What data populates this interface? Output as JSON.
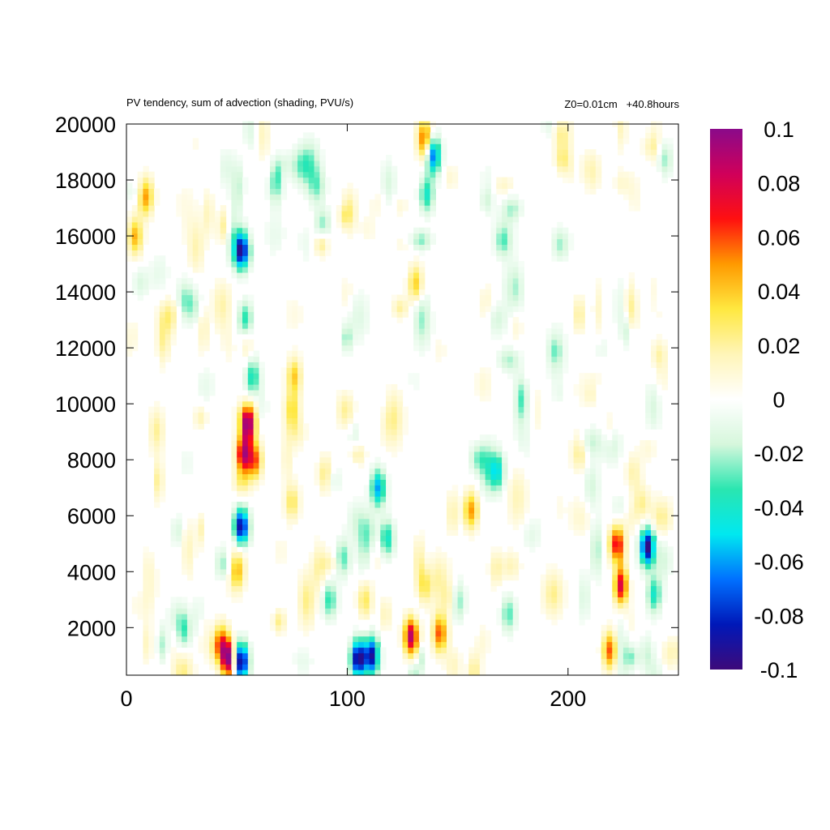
{
  "chart_data": {
    "type": "heatmap",
    "title": "PV tendency, sum of advection (shading, PVU/s)",
    "subtitle_right": "Z0=0.01cm   +40.8hours",
    "xlabel": "",
    "ylabel": "",
    "xlim": [
      0,
      250
    ],
    "ylim": [
      300,
      20000
    ],
    "x_ticks": [
      0,
      100,
      200
    ],
    "x_tick_labels": [
      "0",
      "100",
      "200"
    ],
    "y_ticks": [
      2000,
      4000,
      6000,
      8000,
      10000,
      12000,
      14000,
      16000,
      18000,
      20000
    ],
    "y_tick_labels": [
      "2000",
      "4000",
      "6000",
      "8000",
      "10000",
      "12000",
      "14000",
      "16000",
      "18000",
      "20000"
    ],
    "colorbar": {
      "range": [
        -0.1,
        0.1
      ],
      "ticks": [
        0.1,
        0.08,
        0.06,
        0.04,
        0.02,
        0,
        -0.02,
        -0.04,
        -0.06,
        -0.08,
        -0.1
      ],
      "tick_labels": [
        "0.1",
        "0.08",
        "0.06",
        "0.04",
        "0.02",
        "0",
        "-0.02",
        "-0.04",
        "-0.06",
        "-0.08",
        "-0.1"
      ],
      "colors": [
        "#3d0a7a",
        "#0018b8",
        "#0070ff",
        "#00e8f0",
        "#2ae6b0",
        "#d6f7dc",
        "#ffffff",
        "#fff5b8",
        "#ffe840",
        "#ff9a00",
        "#ff1010",
        "#d0005a",
        "#8a0a8a"
      ]
    },
    "features": [
      {
        "x": 52,
        "y": 15500,
        "value": -0.1
      },
      {
        "x": 54,
        "y": 13000,
        "value": -0.045
      },
      {
        "x": 57,
        "y": 11000,
        "value": -0.04
      },
      {
        "x": 55,
        "y": 9300,
        "value": 0.1
      },
      {
        "x": 53,
        "y": 8200,
        "value": 0.085
      },
      {
        "x": 58,
        "y": 8000,
        "value": 0.06
      },
      {
        "x": 52,
        "y": 5600,
        "value": -0.1
      },
      {
        "x": 50,
        "y": 4000,
        "value": 0.04
      },
      {
        "x": 52,
        "y": 800,
        "value": -0.1
      },
      {
        "x": 46,
        "y": 900,
        "value": 0.1
      },
      {
        "x": 43,
        "y": 1500,
        "value": 0.05
      },
      {
        "x": 105,
        "y": 900,
        "value": -0.1
      },
      {
        "x": 111,
        "y": 1000,
        "value": -0.09
      },
      {
        "x": 129,
        "y": 1700,
        "value": 0.09
      },
      {
        "x": 142,
        "y": 1800,
        "value": 0.06
      },
      {
        "x": 135,
        "y": 3500,
        "value": 0.03
      },
      {
        "x": 224,
        "y": 3500,
        "value": 0.085
      },
      {
        "x": 222,
        "y": 5000,
        "value": 0.07
      },
      {
        "x": 219,
        "y": 1200,
        "value": 0.06
      },
      {
        "x": 236,
        "y": 4900,
        "value": -0.1
      },
      {
        "x": 239,
        "y": 3200,
        "value": -0.04
      },
      {
        "x": 4,
        "y": 16000,
        "value": 0.045
      },
      {
        "x": 9,
        "y": 17500,
        "value": 0.03
      },
      {
        "x": 44,
        "y": 16400,
        "value": 0.04
      },
      {
        "x": 76,
        "y": 11000,
        "value": 0.04
      },
      {
        "x": 75,
        "y": 9800,
        "value": 0.035
      },
      {
        "x": 114,
        "y": 7000,
        "value": -0.06
      },
      {
        "x": 118,
        "y": 5200,
        "value": -0.04
      },
      {
        "x": 156,
        "y": 6200,
        "value": 0.05
      },
      {
        "x": 168,
        "y": 7600,
        "value": -0.04
      },
      {
        "x": 135,
        "y": 19500,
        "value": 0.06
      },
      {
        "x": 139,
        "y": 18900,
        "value": -0.07
      },
      {
        "x": 136,
        "y": 17500,
        "value": -0.04
      },
      {
        "x": 131,
        "y": 14300,
        "value": 0.04
      },
      {
        "x": 92,
        "y": 3000,
        "value": -0.035
      },
      {
        "x": 108,
        "y": 3000,
        "value": 0.03
      },
      {
        "x": 150,
        "y": 3000,
        "value": -0.04
      },
      {
        "x": 173,
        "y": 2500,
        "value": -0.03
      },
      {
        "x": 26,
        "y": 1900,
        "value": -0.03
      },
      {
        "x": 75,
        "y": 6500,
        "value": 0.03
      },
      {
        "x": 90,
        "y": 7500,
        "value": 0.025
      },
      {
        "x": 98,
        "y": 4500,
        "value": -0.03
      }
    ]
  }
}
